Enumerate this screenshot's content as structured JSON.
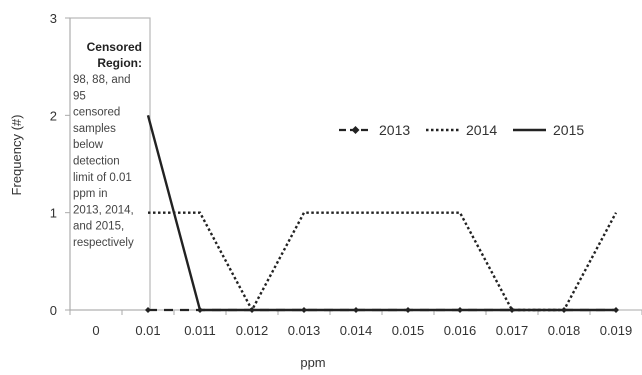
{
  "chart_data": {
    "type": "line",
    "xlabel": "ppm",
    "ylabel": "Frequency (#)",
    "categories": [
      "0",
      "0.01",
      "0.011",
      "0.012",
      "0.013",
      "0.014",
      "0.015",
      "0.016",
      "0.017",
      "0.018",
      "0.019"
    ],
    "y_ticks": [
      "0",
      "1",
      "2",
      "3"
    ],
    "ylim": [
      0,
      3
    ],
    "grid": false,
    "legend_position": "top-right",
    "series": [
      {
        "name": "2013",
        "style": "dash-with-diamond-markers",
        "color": "#222222",
        "x": [
          "0.01",
          "0.011",
          "0.012",
          "0.013",
          "0.014",
          "0.015",
          "0.016",
          "0.017",
          "0.018",
          "0.019"
        ],
        "values": [
          0,
          0,
          0,
          0,
          0,
          0,
          0,
          0,
          0,
          0
        ]
      },
      {
        "name": "2014",
        "style": "dotted",
        "color": "#222222",
        "x": [
          "0.01",
          "0.011",
          "0.012",
          "0.013",
          "0.014",
          "0.015",
          "0.016",
          "0.017",
          "0.018",
          "0.019"
        ],
        "values": [
          1,
          1,
          0,
          1,
          1,
          1,
          1,
          0,
          0,
          1
        ]
      },
      {
        "name": "2015",
        "style": "solid",
        "color": "#222222",
        "x": [
          "0.01",
          "0.011",
          "0.012",
          "0.013",
          "0.014",
          "0.015",
          "0.016",
          "0.017",
          "0.018",
          "0.019"
        ],
        "values": [
          2,
          0,
          0,
          0,
          0,
          0,
          0,
          0,
          0,
          0
        ]
      }
    ],
    "annotation": {
      "title_lines": [
        "Censored",
        "Region:"
      ],
      "body_lines": [
        "98, 88, and",
        "95",
        "censored",
        "samples",
        "below",
        "detection",
        "limit of 0.01",
        "ppm in",
        "2013, 2014,",
        "and 2015,",
        "respectively"
      ]
    }
  }
}
